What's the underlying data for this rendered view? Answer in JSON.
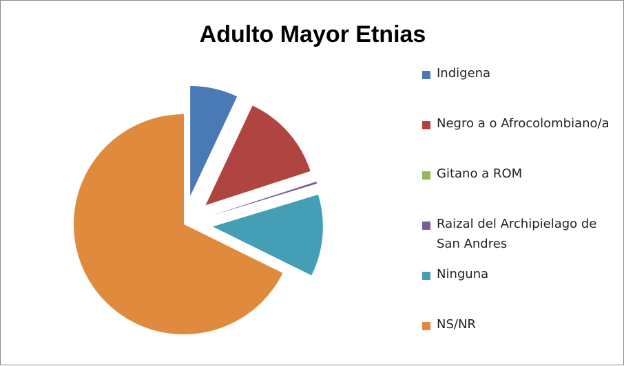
{
  "chart_data": {
    "type": "pie",
    "title": "Adulto Mayor Etnias",
    "categories": [
      "Indigena",
      "Negro a o Afrocolombiano/a",
      "Gitano a ROM",
      "Raizal del Archipielago de San Andres",
      "Ninguna",
      "NS/NR"
    ],
    "values": [
      7,
      13,
      0,
      0.3,
      12,
      67.7
    ],
    "colors": [
      "#4a7ab5",
      "#b04441",
      "#93b656",
      "#7a5d99",
      "#449eb6",
      "#e08a3e"
    ],
    "legend": "right"
  }
}
